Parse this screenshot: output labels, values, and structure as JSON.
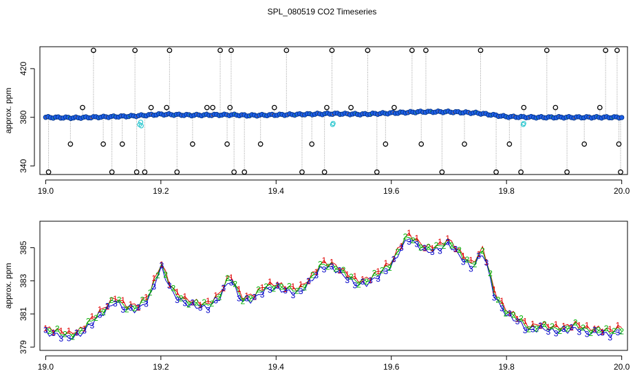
{
  "title": "SPL_080519  CO2 Timeseries",
  "chart_data": [
    {
      "type": "scatter",
      "ylabel": "approx. ppm",
      "xlim": [
        18.99,
        20.01
      ],
      "ylim": [
        333,
        438
      ],
      "xticks": [
        "19.0",
        "19.2",
        "19.4",
        "19.6",
        "19.8",
        "20.0"
      ],
      "xtick_values": [
        19.0,
        19.2,
        19.4,
        19.6,
        19.8,
        20.0
      ],
      "yticks": [
        "340",
        "380",
        "420"
      ],
      "ytick_values": [
        340,
        380,
        420
      ],
      "baseline_trend": {
        "x": [
          19.0,
          19.05,
          19.1,
          19.15,
          19.2,
          19.25,
          19.3,
          19.33,
          19.35,
          19.4,
          19.45,
          19.5,
          19.55,
          19.6,
          19.65,
          19.7,
          19.75,
          19.8,
          19.85,
          19.9,
          19.95,
          20.0
        ],
        "y": [
          380,
          379.6,
          380.3,
          381,
          382.5,
          381.8,
          382,
          382,
          381.5,
          382,
          382.5,
          383,
          382.5,
          383.5,
          384.5,
          384.5,
          383.5,
          380.5,
          380,
          380,
          380,
          380
        ]
      },
      "spike_x": [
        19.005,
        19.043,
        19.064,
        19.083,
        19.1,
        19.115,
        19.133,
        19.155,
        19.158,
        19.172,
        19.183,
        19.21,
        19.215,
        19.228,
        19.255,
        19.28,
        19.29,
        19.303,
        19.315,
        19.32,
        19.322,
        19.327,
        19.345,
        19.373,
        19.397,
        19.418,
        19.445,
        19.462,
        19.484,
        19.488,
        19.497,
        19.53,
        19.559,
        19.575,
        19.59,
        19.605,
        19.636,
        19.652,
        19.66,
        19.688,
        19.727,
        19.755,
        19.782,
        19.805,
        19.825,
        19.83,
        19.87,
        19.885,
        19.905,
        19.935,
        19.962,
        19.972,
        19.992,
        19.995,
        19.998
      ],
      "spike_y": [
        335,
        358,
        388,
        435,
        358,
        335,
        358,
        435,
        335,
        335,
        388,
        388,
        435,
        335,
        358,
        388,
        388,
        435,
        358,
        388,
        435,
        335,
        335,
        358,
        388,
        435,
        335,
        358,
        335,
        388,
        435,
        388,
        435,
        335,
        358,
        388,
        435,
        358,
        435,
        335,
        358,
        435,
        335,
        358,
        335,
        388,
        435,
        388,
        335,
        358,
        388,
        435,
        435,
        358,
        335
      ],
      "cyan_points_x": [
        19.163,
        19.165,
        19.166,
        19.498,
        19.499,
        19.829,
        19.83
      ],
      "cyan_points_y": [
        374,
        376,
        373,
        374,
        375,
        374,
        375
      ]
    },
    {
      "type": "scatter",
      "ylabel": "approx. ppm",
      "xlim": [
        18.99,
        20.01
      ],
      "ylim": [
        378.8,
        386.6
      ],
      "xticks": [
        "19.0",
        "19.2",
        "19.4",
        "19.6",
        "19.8",
        "20.0"
      ],
      "xtick_values": [
        19.0,
        19.2,
        19.4,
        19.6,
        19.8,
        20.0
      ],
      "yticks": [
        "379",
        "381",
        "383",
        "385"
      ],
      "ytick_values": [
        379,
        381,
        383,
        385
      ],
      "series_markers": [
        "1",
        "2",
        "3"
      ],
      "series_colors": [
        "#e00000",
        "#00b000",
        "#0000c8"
      ],
      "x": [
        19.0,
        19.02,
        19.04,
        19.06,
        19.08,
        19.1,
        19.12,
        19.14,
        19.16,
        19.18,
        19.2,
        19.22,
        19.24,
        19.26,
        19.28,
        19.3,
        19.32,
        19.34,
        19.36,
        19.38,
        19.4,
        19.42,
        19.44,
        19.46,
        19.48,
        19.5,
        19.52,
        19.54,
        19.56,
        19.58,
        19.6,
        19.62,
        19.63,
        19.66,
        19.68,
        19.7,
        19.72,
        19.74,
        19.76,
        19.78,
        19.8,
        19.82,
        19.84,
        19.86,
        19.88,
        19.9,
        19.92,
        19.94,
        19.96,
        19.98,
        20.0
      ],
      "y": [
        379.9,
        379.8,
        379.6,
        379.8,
        380.5,
        381.1,
        381.8,
        381.3,
        381.3,
        382.0,
        383.9,
        382.3,
        381.7,
        381.5,
        381.4,
        381.9,
        383.2,
        381.8,
        381.9,
        382.5,
        382.6,
        382.4,
        382.3,
        383.0,
        383.9,
        383.8,
        383.3,
        382.8,
        382.9,
        383.4,
        383.9,
        385.2,
        385.6,
        384.8,
        384.9,
        385.3,
        384.5,
        383.8,
        384.8,
        382.0,
        381.0,
        380.6,
        380.0,
        380.2,
        380.0,
        380.0,
        380.2,
        379.9,
        379.9,
        379.8,
        380.0
      ]
    }
  ]
}
